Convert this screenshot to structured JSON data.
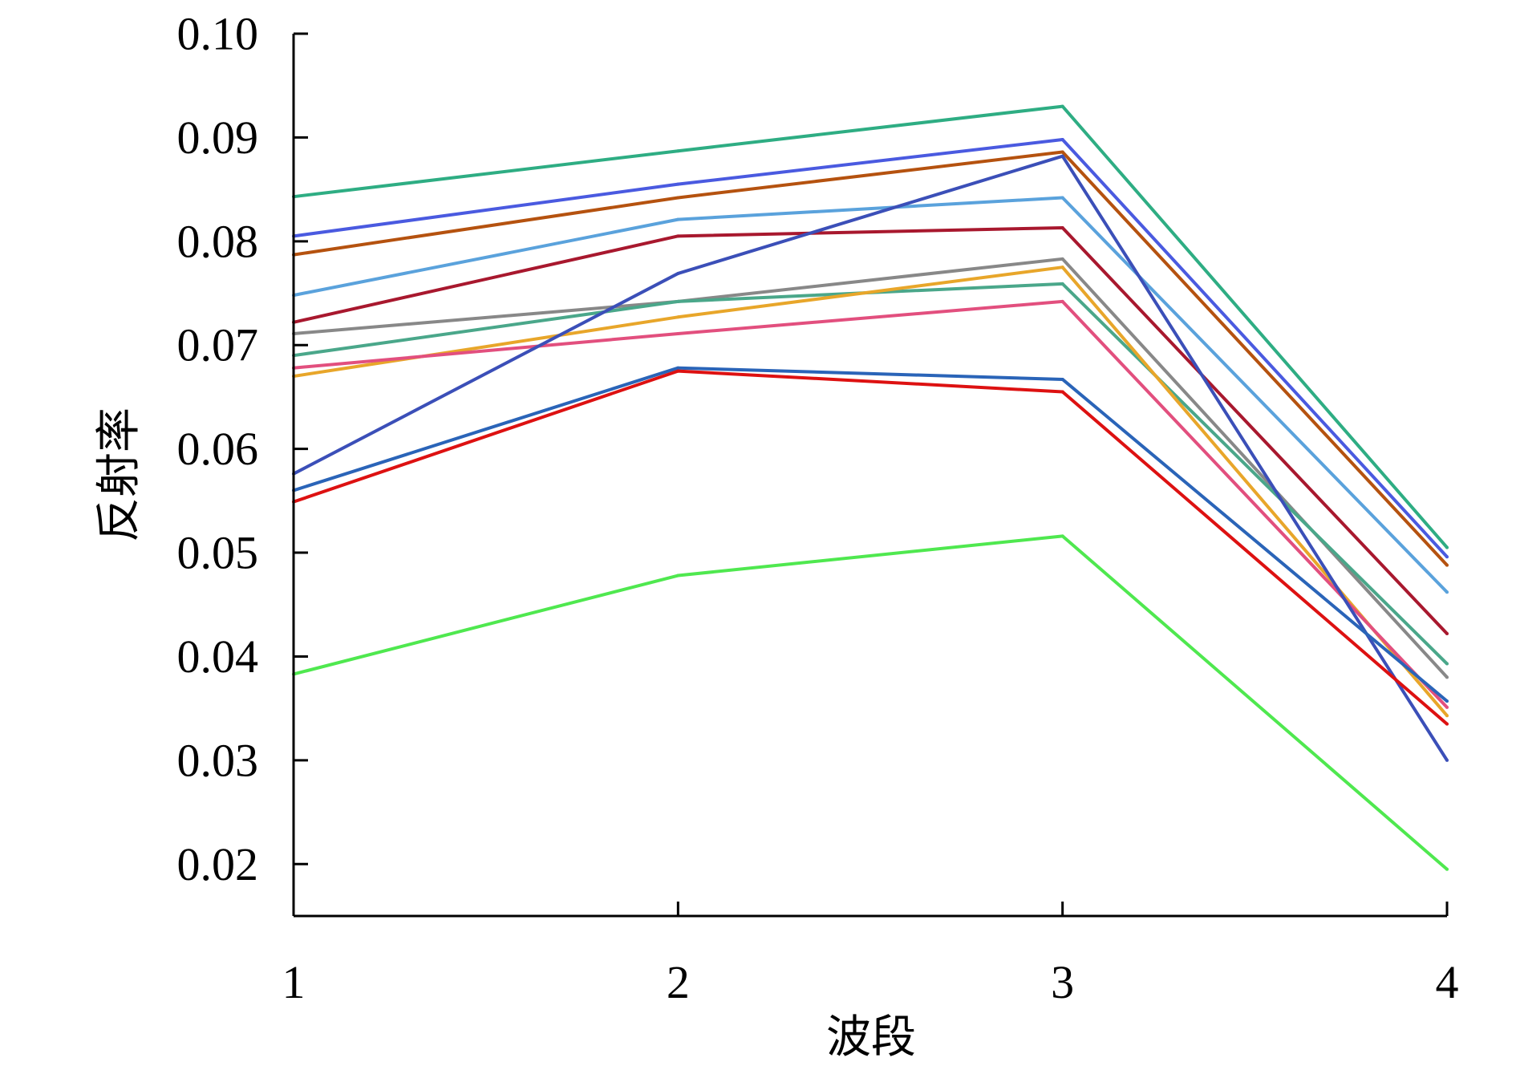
{
  "chart_data": {
    "type": "line",
    "xlabel": "波段",
    "ylabel": "反射率",
    "x": [
      1,
      2,
      3,
      4
    ],
    "x_tick_labels": [
      "1",
      "2",
      "3",
      "4"
    ],
    "ylim": [
      0.015,
      0.1
    ],
    "y_ticks": [
      0.02,
      0.03,
      0.04,
      0.05,
      0.06,
      0.07,
      0.08,
      0.09,
      0.1
    ],
    "y_tick_labels": [
      "0.02",
      "0.03",
      "0.04",
      "0.05",
      "0.06",
      "0.07",
      "0.08",
      "0.09",
      "0.10"
    ],
    "grid": false,
    "legend": "none",
    "series": [
      {
        "color": "#2ead83",
        "values": [
          0.0843,
          0.0887,
          0.093,
          0.0505
        ]
      },
      {
        "color": "#4a5ae0",
        "values": [
          0.0805,
          0.0855,
          0.0898,
          0.0496
        ]
      },
      {
        "color": "#b5520f",
        "values": [
          0.0787,
          0.0842,
          0.0886,
          0.0488
        ]
      },
      {
        "color": "#5aa2dc",
        "values": [
          0.0748,
          0.0821,
          0.0842,
          0.0462
        ]
      },
      {
        "color": "#a8182e",
        "values": [
          0.0722,
          0.0805,
          0.0813,
          0.0422
        ]
      },
      {
        "color": "#888888",
        "values": [
          0.0711,
          0.0742,
          0.0783,
          0.038
        ]
      },
      {
        "color": "#4aa78a",
        "values": [
          0.069,
          0.0742,
          0.0759,
          0.0393
        ]
      },
      {
        "color": "#e8a62a",
        "values": [
          0.067,
          0.0727,
          0.0775,
          0.0343
        ]
      },
      {
        "color": "#e24f7e",
        "values": [
          0.0678,
          0.0711,
          0.0742,
          0.0351
        ]
      },
      {
        "color": "#3b4fb8",
        "values": [
          0.0576,
          0.0769,
          0.0882,
          0.03
        ]
      },
      {
        "color": "#2a64b8",
        "values": [
          0.056,
          0.0678,
          0.0667,
          0.0357
        ]
      },
      {
        "color": "#dd1111",
        "values": [
          0.0549,
          0.0675,
          0.0655,
          0.0335
        ]
      },
      {
        "color": "#4fe84f",
        "values": [
          0.0383,
          0.0478,
          0.0516,
          0.0195
        ]
      }
    ]
  }
}
